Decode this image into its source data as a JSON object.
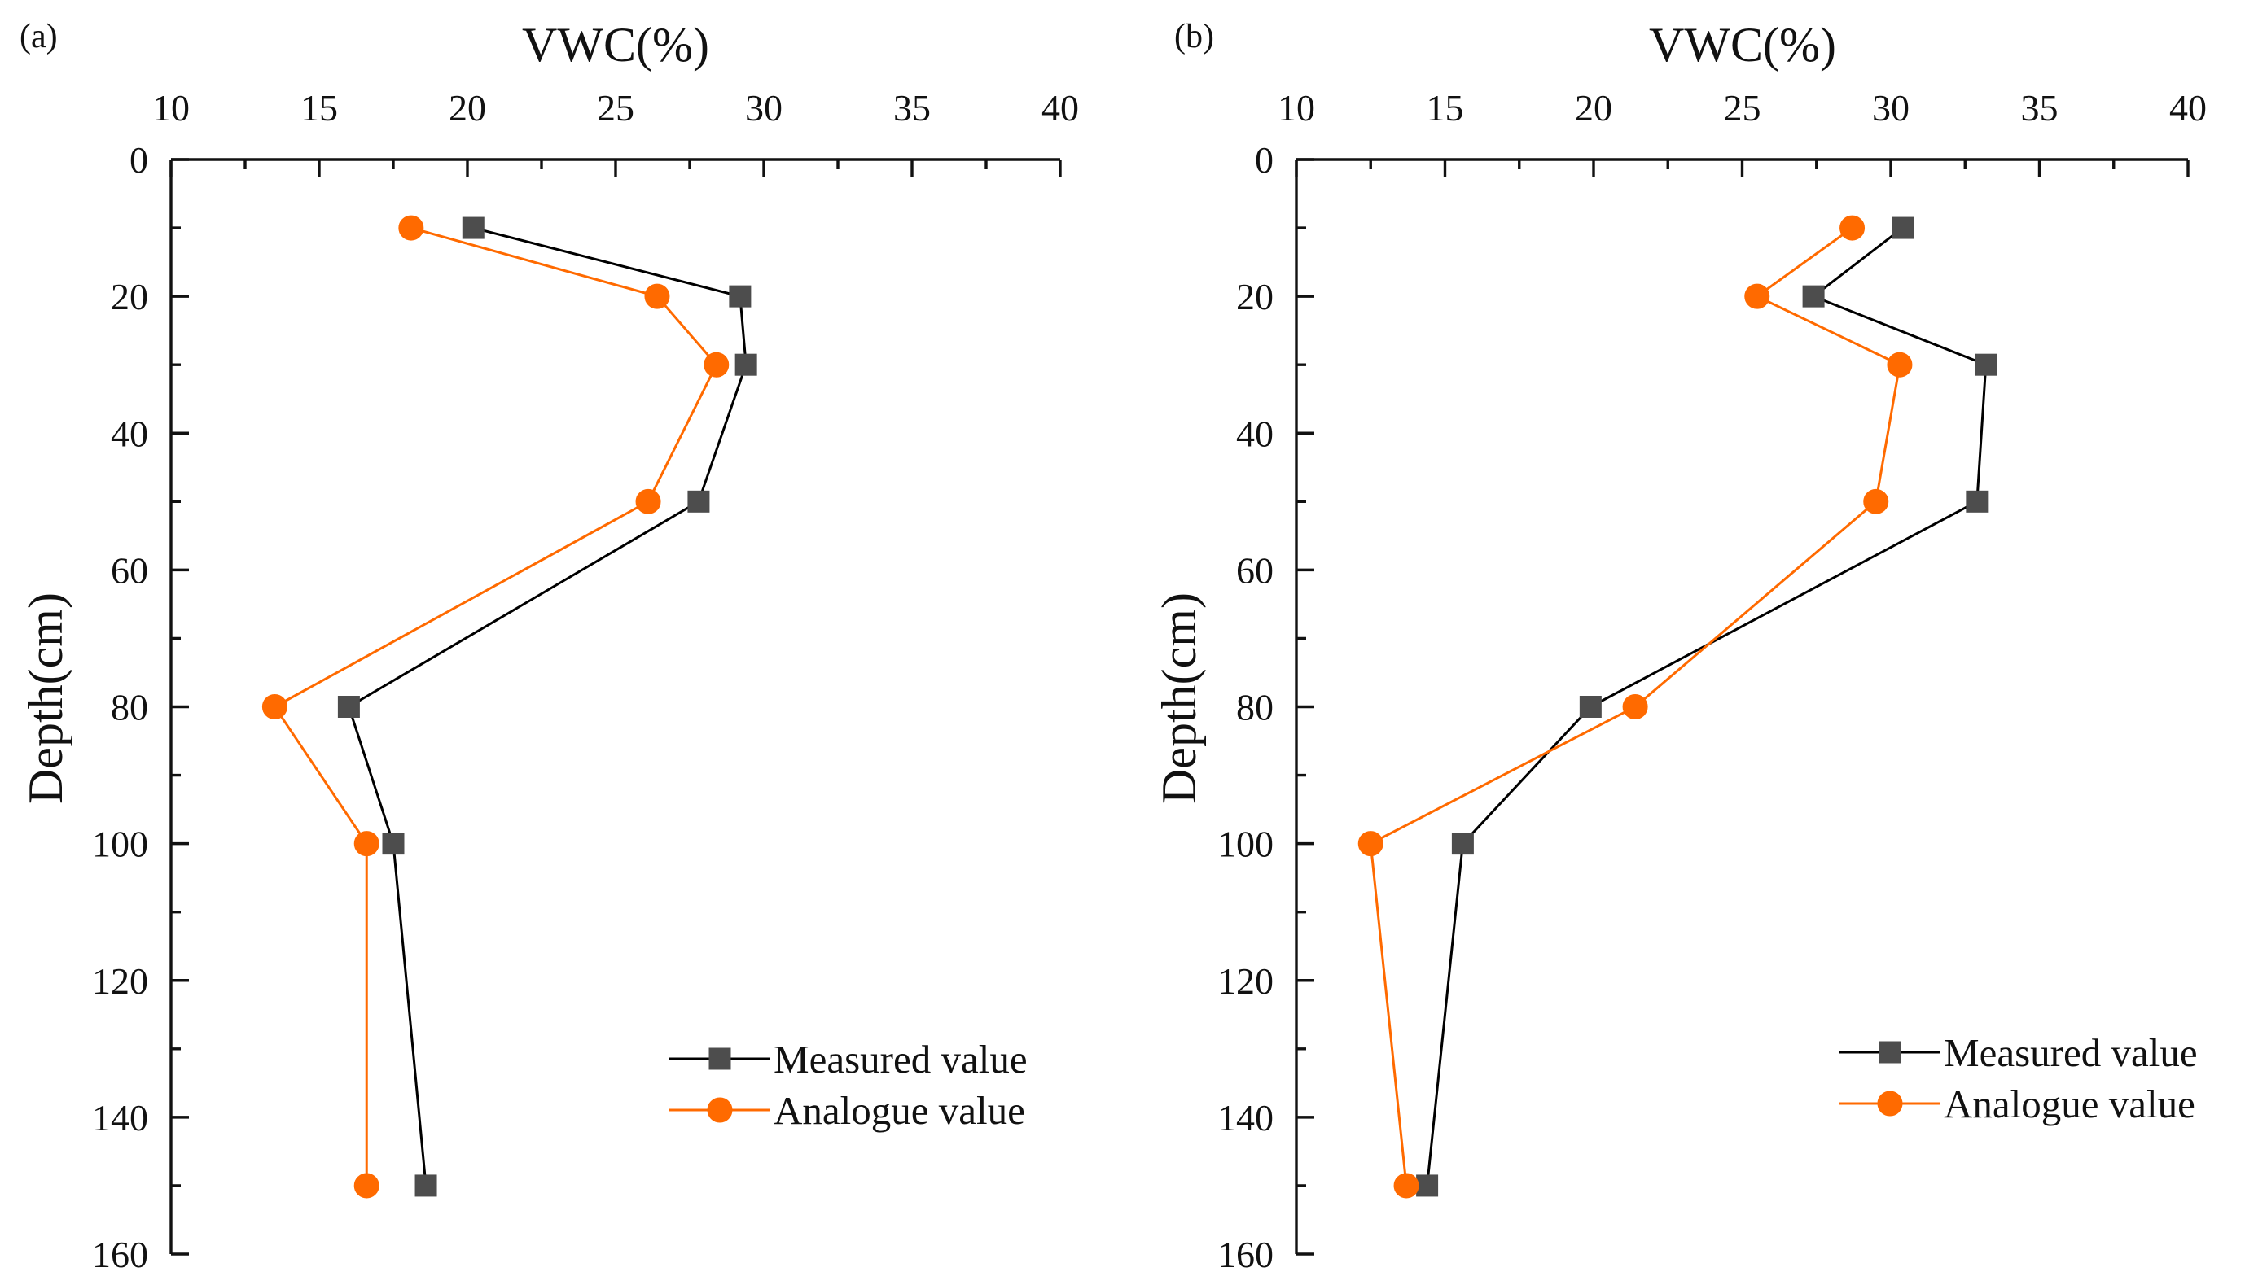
{
  "chart_data": [
    {
      "type": "line",
      "panel_label": "(a)",
      "xlabel": "VWC(%)",
      "ylabel": "Depth(cm)",
      "x_axis_position": "top",
      "y_axis_inverted": true,
      "xlim": [
        10,
        40
      ],
      "ylim": [
        0,
        160
      ],
      "x_ticks": [
        10,
        15,
        20,
        25,
        30,
        35,
        40
      ],
      "y_ticks": [
        0,
        20,
        40,
        60,
        80,
        100,
        120,
        140,
        160
      ],
      "grid": false,
      "legend_position": "bottom-right",
      "series": [
        {
          "name": "Measured value",
          "color": "#000000",
          "marker": "square",
          "marker_color": "#4d4d4d",
          "points": [
            {
              "vwc": 20.2,
              "depth": 10
            },
            {
              "vwc": 29.2,
              "depth": 20
            },
            {
              "vwc": 29.4,
              "depth": 30
            },
            {
              "vwc": 27.8,
              "depth": 50
            },
            {
              "vwc": 16.0,
              "depth": 80
            },
            {
              "vwc": 17.5,
              "depth": 100
            },
            {
              "vwc": 18.6,
              "depth": 150
            }
          ]
        },
        {
          "name": "Analogue value",
          "color": "#ff6a00",
          "marker": "circle",
          "marker_color": "#ff6a00",
          "points": [
            {
              "vwc": 18.1,
              "depth": 10
            },
            {
              "vwc": 26.4,
              "depth": 20
            },
            {
              "vwc": 28.4,
              "depth": 30
            },
            {
              "vwc": 26.1,
              "depth": 50
            },
            {
              "vwc": 13.5,
              "depth": 80
            },
            {
              "vwc": 16.6,
              "depth": 100
            },
            {
              "vwc": 16.6,
              "depth": 150
            }
          ]
        }
      ]
    },
    {
      "type": "line",
      "panel_label": "(b)",
      "xlabel": "VWC(%)",
      "ylabel": "Depth(cm)",
      "x_axis_position": "top",
      "y_axis_inverted": true,
      "xlim": [
        10,
        40
      ],
      "ylim": [
        0,
        160
      ],
      "x_ticks": [
        10,
        15,
        20,
        25,
        30,
        35,
        40
      ],
      "y_ticks": [
        0,
        20,
        40,
        60,
        80,
        100,
        120,
        140,
        160
      ],
      "grid": false,
      "legend_position": "bottom-right",
      "series": [
        {
          "name": "Measured value",
          "color": "#000000",
          "marker": "square",
          "marker_color": "#4d4d4d",
          "points": [
            {
              "vwc": 30.4,
              "depth": 10
            },
            {
              "vwc": 27.4,
              "depth": 20
            },
            {
              "vwc": 33.2,
              "depth": 30
            },
            {
              "vwc": 32.9,
              "depth": 50
            },
            {
              "vwc": 19.9,
              "depth": 80
            },
            {
              "vwc": 15.6,
              "depth": 100
            },
            {
              "vwc": 14.4,
              "depth": 150
            }
          ]
        },
        {
          "name": "Analogue value",
          "color": "#ff6a00",
          "marker": "circle",
          "marker_color": "#ff6a00",
          "points": [
            {
              "vwc": 28.7,
              "depth": 10
            },
            {
              "vwc": 25.5,
              "depth": 20
            },
            {
              "vwc": 30.3,
              "depth": 30
            },
            {
              "vwc": 29.5,
              "depth": 50
            },
            {
              "vwc": 21.4,
              "depth": 80
            },
            {
              "vwc": 12.5,
              "depth": 100
            },
            {
              "vwc": 13.7,
              "depth": 150
            }
          ]
        }
      ]
    }
  ]
}
